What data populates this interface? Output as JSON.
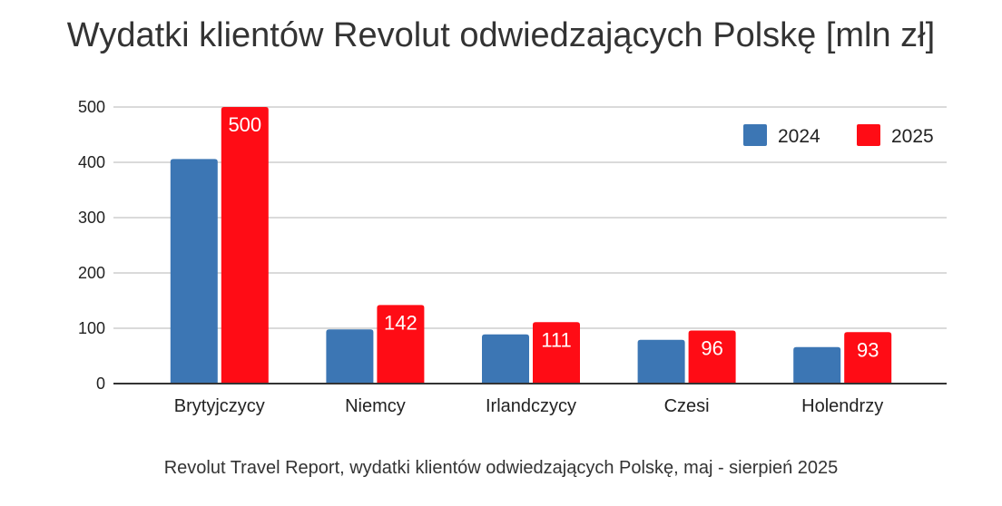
{
  "chart_data": {
    "type": "bar",
    "title": "Wydatki klientów Revolut odwiedzających Polskę [mln zł]",
    "caption": "Revolut Travel Report, wydatki klientów odwiedzających Polskę, maj - sierpień 2025",
    "xlabel": "",
    "ylabel": "",
    "ylim": [
      0,
      500
    ],
    "yticks": [
      0,
      100,
      200,
      300,
      400,
      500
    ],
    "grid": true,
    "legend": "top-right",
    "categories": [
      "Brytyjczycy",
      "Niemcy",
      "Irlandczycy",
      "Czesi",
      "Holendrzy"
    ],
    "series": [
      {
        "name": "2024",
        "color": "#3c76b4",
        "values": [
          406,
          98,
          89,
          79,
          66
        ],
        "labels": false
      },
      {
        "name": "2025",
        "color": "#ff0c15",
        "values": [
          500,
          142,
          111,
          96,
          93
        ],
        "labels": true
      }
    ]
  }
}
